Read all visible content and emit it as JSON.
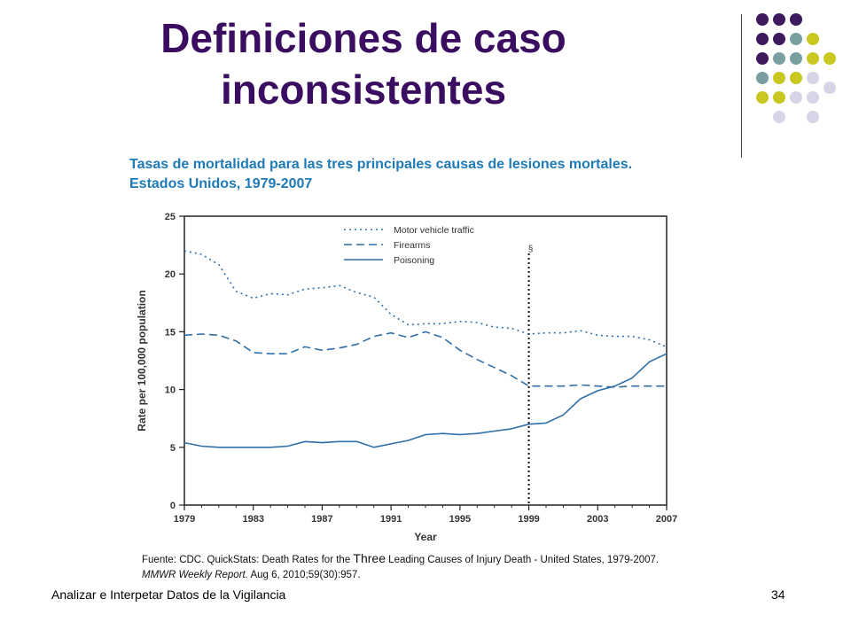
{
  "slide": {
    "title_line1": "Definiciones de caso",
    "title_line2": "inconsistentes",
    "subtitle": "Tasas de mortalidad para las tres principales causas de lesiones mortales. Estados Unidos, 1979-2007",
    "source_part1": "Fuente: CDC. QuickStats: Death Rates for the ",
    "source_bigword": "Three",
    "source_part2": " Leading Causes of Injury Death - United States, 1979-2007.",
    "source_journal": "MMWR Weekly Report.",
    "source_citation": " Aug 6, 2010;59(30):957.",
    "footer_left": "Analizar e Interpetar Datos de la Vigilancia",
    "page_number": "34",
    "colors": {
      "title": "#3b0d60",
      "subtitle": "#1f7ab8",
      "series": "#2f6fa8",
      "dots_purple": "#3d1a5e",
      "dots_teal": "#7a9fa1",
      "dots_yellow": "#c9c820",
      "dots_lavender": "#d6d4e6"
    }
  },
  "chart_data": {
    "type": "line",
    "title": "",
    "xlabel": "Year",
    "ylabel": "Rate per 100,000 population",
    "xlim": [
      1979,
      2007
    ],
    "ylim": [
      0,
      25
    ],
    "x_ticks": [
      "1979",
      "1983",
      "1987",
      "1991",
      "1995",
      "1999",
      "2003",
      "2007"
    ],
    "y_ticks": [
      "0",
      "5",
      "10",
      "15",
      "20",
      "25"
    ],
    "legend_position": "top-center",
    "annotation": {
      "x": 1999,
      "label": "§",
      "style": "dotted-vertical-line"
    },
    "x": [
      1979,
      1980,
      1981,
      1982,
      1983,
      1984,
      1985,
      1986,
      1987,
      1988,
      1989,
      1990,
      1991,
      1992,
      1993,
      1994,
      1995,
      1996,
      1997,
      1998,
      1999,
      2000,
      2001,
      2002,
      2003,
      2004,
      2005,
      2006,
      2007
    ],
    "series": [
      {
        "name": "Motor vehicle traffic",
        "style": "dotted",
        "values": [
          22.0,
          21.7,
          20.8,
          18.5,
          17.9,
          18.3,
          18.2,
          18.7,
          18.8,
          19.0,
          18.4,
          18.0,
          16.5,
          15.6,
          15.7,
          15.7,
          15.9,
          15.8,
          15.4,
          15.3,
          14.8,
          14.9,
          14.9,
          15.1,
          14.7,
          14.6,
          14.6,
          14.3,
          13.7
        ]
      },
      {
        "name": "Firearms",
        "style": "dashed",
        "values": [
          14.7,
          14.8,
          14.7,
          14.2,
          13.2,
          13.1,
          13.1,
          13.7,
          13.4,
          13.6,
          13.9,
          14.6,
          14.9,
          14.5,
          15.0,
          14.5,
          13.4,
          12.6,
          11.9,
          11.2,
          10.3,
          10.3,
          10.3,
          10.4,
          10.3,
          10.2,
          10.3,
          10.3,
          10.3
        ]
      },
      {
        "name": "Poisoning",
        "style": "solid",
        "values": [
          5.4,
          5.1,
          5.0,
          5.0,
          5.0,
          5.0,
          5.1,
          5.5,
          5.4,
          5.5,
          5.5,
          5.0,
          5.3,
          5.6,
          6.1,
          6.2,
          6.1,
          6.2,
          6.4,
          6.6,
          7.0,
          7.1,
          7.8,
          9.2,
          9.9,
          10.3,
          11.0,
          12.4,
          13.1
        ]
      }
    ]
  }
}
